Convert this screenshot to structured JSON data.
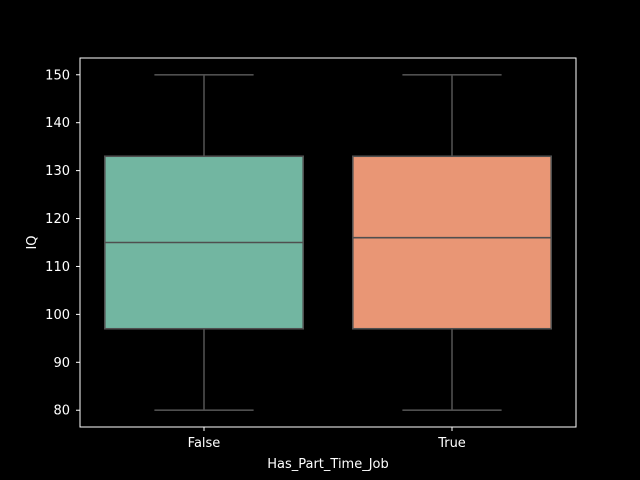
{
  "chart_data": {
    "type": "box",
    "title": "",
    "xlabel": "Has_Part_Time_Job",
    "ylabel": "IQ",
    "categories": [
      "False",
      "True"
    ],
    "ylim": [
      76.5,
      153.5
    ],
    "yticks": [
      80,
      90,
      100,
      110,
      120,
      130,
      140,
      150
    ],
    "boxes": [
      {
        "category": "False",
        "whisker_low": 80,
        "q1": 97,
        "median": 115,
        "q3": 133,
        "whisker_high": 150,
        "color": "#72b6a1"
      },
      {
        "category": "True",
        "whisker_low": 80,
        "q1": 97,
        "median": 116,
        "q3": 133,
        "whisker_high": 150,
        "color": "#e99675"
      }
    ],
    "grid": false,
    "legend": "none",
    "colors": {
      "background": "#000000",
      "frame": "#ffffff",
      "box_edge": "#4f4f4f",
      "text": "#ffffff"
    }
  }
}
